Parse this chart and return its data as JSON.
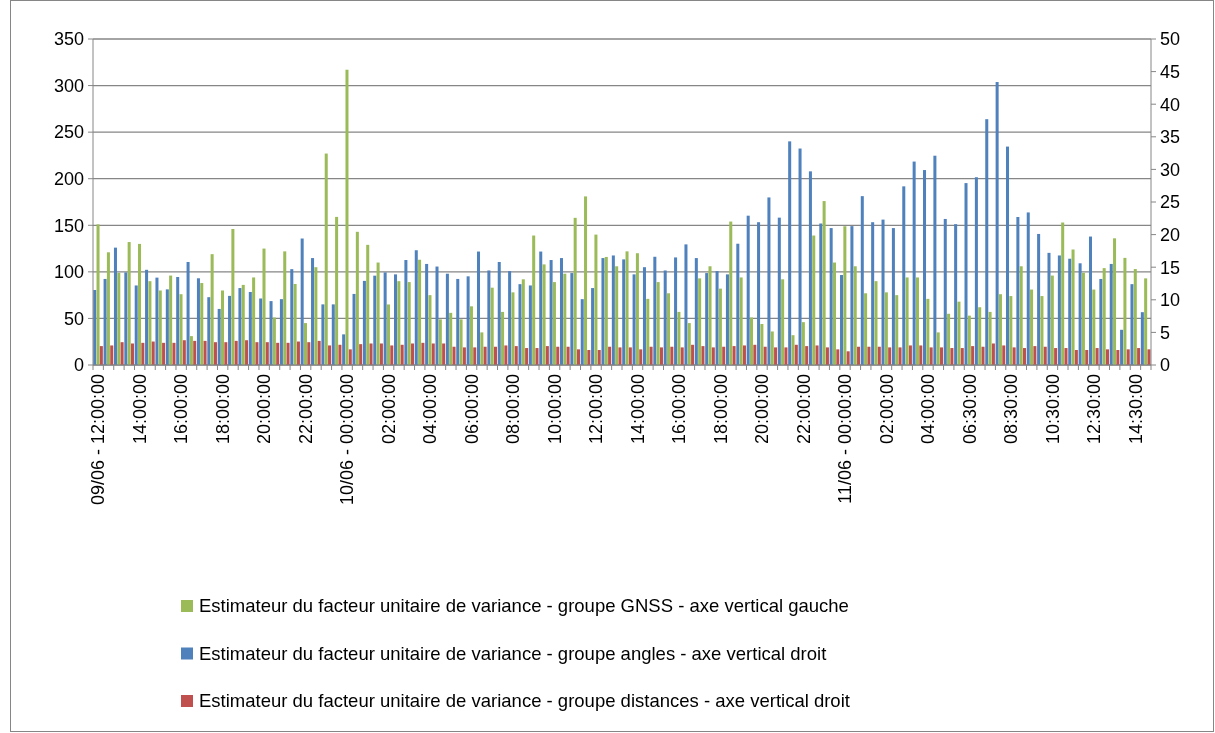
{
  "chart_data": {
    "type": "bar",
    "categories": [
      "09/06 - 12:00:00",
      null,
      null,
      null,
      "14:00:00",
      null,
      null,
      null,
      "16:00:00",
      null,
      null,
      null,
      "18:00:00",
      null,
      null,
      null,
      "20:00:00",
      null,
      null,
      null,
      "22:00:00",
      null,
      null,
      null,
      "10/06 - 00:00:00",
      null,
      null,
      null,
      "02:00:00",
      null,
      null,
      null,
      "04:00:00",
      null,
      null,
      null,
      "06:00:00",
      null,
      null,
      null,
      "08:00:00",
      null,
      null,
      null,
      "10:00:00",
      null,
      null,
      null,
      "12:00:00",
      null,
      null,
      null,
      "14:00:00",
      null,
      null,
      null,
      "16:00:00",
      null,
      null,
      null,
      "18:00:00",
      null,
      null,
      null,
      "20:00:00",
      null,
      null,
      null,
      "22:00:00",
      null,
      null,
      null,
      "11/06 - 00:00:00",
      null,
      null,
      null,
      "02:00:00",
      null,
      null,
      null,
      "04:00:00",
      null,
      null,
      null,
      "06:30:00",
      null,
      null,
      null,
      "08:30:00",
      null,
      null,
      null,
      "10:30:00",
      null,
      null,
      null,
      "12:30:00",
      null,
      null,
      null,
      "14:30:00",
      null
    ],
    "series": [
      {
        "name": "Estimateur du facteur unitaire de variance - groupe GNSS - axe vertical gauche",
        "color": "#9bbb59",
        "values": [
          151,
          121,
          99,
          132,
          130,
          90,
          80,
          96,
          76,
          31,
          88,
          119,
          80,
          146,
          86,
          94,
          125,
          51,
          122,
          87,
          45,
          105,
          227,
          159,
          317,
          143,
          129,
          110,
          65,
          90,
          89,
          113,
          75,
          49,
          56,
          49,
          63,
          35,
          83,
          57,
          78,
          92,
          139,
          108,
          89,
          98,
          158,
          181,
          140,
          116,
          106,
          122,
          120,
          71,
          89,
          77,
          57,
          45,
          93,
          106,
          82,
          154,
          94,
          51,
          44,
          36,
          92,
          32,
          46,
          139,
          176,
          110,
          149,
          106,
          77,
          90,
          78,
          75,
          94,
          94,
          71,
          35,
          55,
          68,
          53,
          62,
          57,
          76,
          74,
          106,
          81,
          74,
          96,
          153,
          124,
          99,
          81,
          104,
          136,
          115,
          103,
          93
        ]
      },
      {
        "name": "Estimateur du facteur unitaire de variance - groupe angles - axe vertical droit",
        "color": "#4f81bd",
        "axis": "y2",
        "values": [
          11.5,
          13.2,
          18.0,
          14.2,
          12.2,
          14.6,
          13.4,
          11.6,
          13.5,
          15.8,
          13.3,
          10.4,
          8.6,
          10.6,
          11.8,
          11.2,
          10.2,
          9.8,
          10.1,
          14.7,
          19.4,
          16.4,
          9.3,
          9.3,
          4.7,
          10.9,
          12.9,
          13.7,
          14.2,
          13.9,
          16.1,
          17.6,
          15.5,
          15.1,
          14.0,
          13.2,
          13.6,
          17.4,
          14.5,
          15.8,
          14.4,
          12.4,
          12.2,
          17.4,
          16.1,
          16.4,
          14.1,
          10.1,
          11.8,
          16.4,
          16.8,
          16.2,
          13.9,
          15.0,
          16.6,
          14.5,
          16.5,
          18.5,
          16.4,
          14.1,
          14.4,
          13.9,
          18.6,
          22.9,
          21.9,
          25.7,
          22.6,
          34.3,
          33.2,
          29.7,
          21.7,
          21.0,
          13.8,
          21.3,
          25.9,
          21.9,
          22.3,
          21.0,
          27.4,
          31.2,
          29.9,
          32.1,
          22.4,
          21.6,
          27.9,
          28.8,
          37.7,
          43.4,
          33.5,
          22.7,
          23.4,
          20.1,
          17.2,
          16.8,
          16.3,
          15.6,
          19.7,
          13.2,
          15.5,
          5.4,
          12.4,
          8.1
        ]
      },
      {
        "name": "Estimateur du facteur unitaire de variance - groupe distances - axe vertical droit",
        "color": "#c0504d",
        "axis": "y2",
        "values": [
          2.9,
          3.0,
          3.5,
          3.3,
          3.4,
          3.6,
          3.4,
          3.4,
          3.8,
          3.7,
          3.7,
          3.5,
          3.5,
          3.7,
          3.8,
          3.5,
          3.5,
          3.4,
          3.4,
          3.6,
          3.5,
          3.7,
          3.0,
          3.1,
          2.4,
          3.2,
          3.3,
          3.3,
          3.0,
          3.1,
          3.3,
          3.4,
          3.3,
          3.3,
          2.8,
          2.7,
          2.7,
          2.8,
          2.8,
          3.0,
          2.9,
          2.6,
          2.6,
          2.9,
          2.8,
          2.8,
          2.4,
          2.3,
          2.3,
          2.8,
          2.7,
          2.7,
          2.4,
          2.8,
          2.7,
          2.8,
          2.7,
          3.1,
          2.9,
          2.7,
          2.8,
          2.9,
          3.0,
          3.1,
          2.8,
          2.7,
          2.7,
          3.1,
          2.9,
          3.0,
          2.7,
          2.4,
          2.1,
          2.8,
          2.8,
          2.8,
          2.7,
          2.7,
          3.0,
          3.0,
          2.7,
          2.7,
          2.6,
          2.6,
          2.9,
          2.8,
          3.3,
          3.0,
          2.7,
          2.6,
          2.9,
          2.8,
          2.6,
          2.6,
          2.3,
          2.3,
          2.6,
          2.4,
          2.3,
          2.4,
          2.6,
          2.4
        ]
      }
    ],
    "ylim": [
      0,
      350
    ],
    "yticks": [
      0,
      50,
      100,
      150,
      200,
      250,
      300,
      350
    ],
    "y2lim": [
      0,
      50
    ],
    "y2ticks": [
      0,
      5,
      10,
      15,
      20,
      25,
      30,
      35,
      40,
      45,
      50
    ],
    "grid": "y",
    "legend": "bottom"
  }
}
